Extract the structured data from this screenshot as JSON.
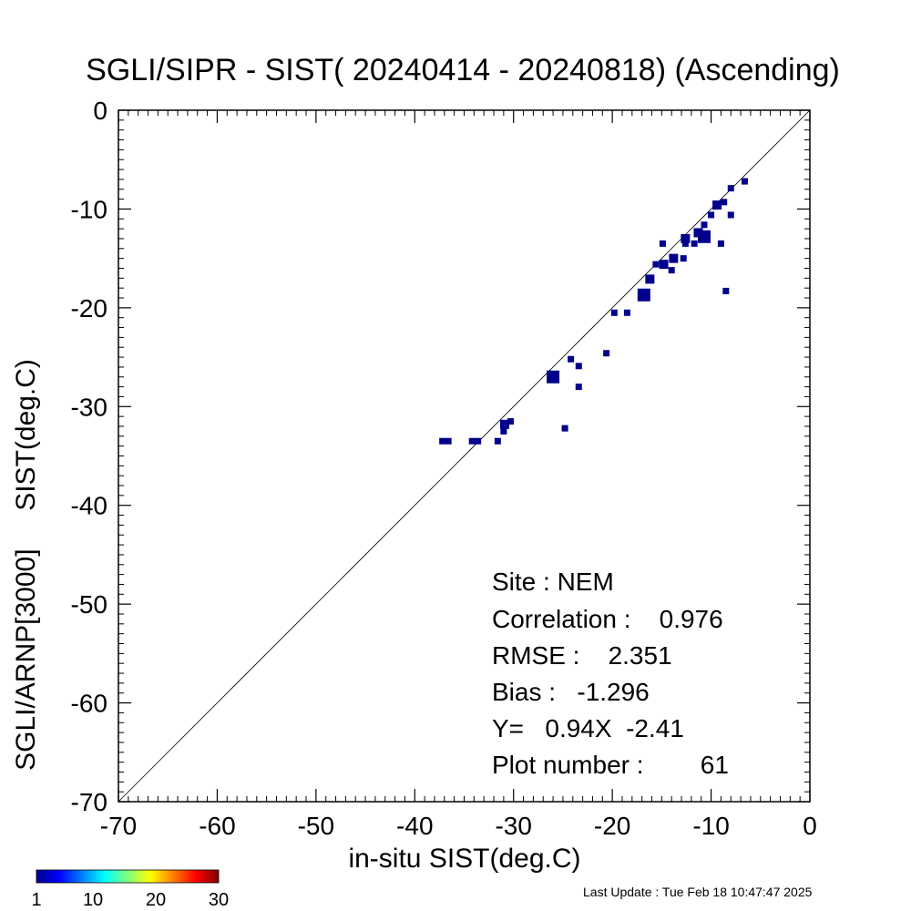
{
  "chart_data": {
    "type": "scatter",
    "title": "SGLI/SIPR - SIST( 20240414 - 20240818) (Ascending)",
    "xlabel": "in-situ SIST(deg.C)",
    "ylabel": "SGLI/ARNP[3000]     SIST(deg.C)",
    "xlim": [
      -70,
      0
    ],
    "ylim": [
      -70,
      0
    ],
    "xticks": [
      -70,
      -60,
      -50,
      -40,
      -30,
      -20,
      -10,
      0
    ],
    "yticks": [
      -70,
      -60,
      -50,
      -40,
      -30,
      -20,
      -10,
      0
    ],
    "xtick_labels": [
      "-70",
      "-60",
      "-50",
      "-40",
      "-30",
      "-20",
      "-10",
      "0"
    ],
    "ytick_labels": [
      "-70",
      "-60",
      "-50",
      "-40",
      "-30",
      "-20",
      "-10",
      "0"
    ],
    "reference_line": "y = x",
    "grid": false,
    "marker_color": "#00008b",
    "points": [
      {
        "x": -37.2,
        "y": -33.5,
        "size": 1
      },
      {
        "x": -36.6,
        "y": -33.5,
        "size": 1
      },
      {
        "x": -34.2,
        "y": -33.5,
        "size": 1
      },
      {
        "x": -33.6,
        "y": -33.5,
        "size": 1
      },
      {
        "x": -31.6,
        "y": -33.5,
        "size": 1
      },
      {
        "x": -31.0,
        "y": -32.5,
        "size": 1
      },
      {
        "x": -30.9,
        "y": -31.8,
        "size": 2
      },
      {
        "x": -30.3,
        "y": -31.5,
        "size": 1
      },
      {
        "x": -26.0,
        "y": -27.0,
        "size": 3
      },
      {
        "x": -24.8,
        "y": -32.2,
        "size": 1
      },
      {
        "x": -24.2,
        "y": -25.2,
        "size": 1
      },
      {
        "x": -23.4,
        "y": -25.9,
        "size": 1
      },
      {
        "x": -23.4,
        "y": -28.0,
        "size": 1
      },
      {
        "x": -20.6,
        "y": -24.6,
        "size": 1
      },
      {
        "x": -19.8,
        "y": -20.5,
        "size": 1
      },
      {
        "x": -18.5,
        "y": -20.5,
        "size": 1
      },
      {
        "x": -16.8,
        "y": -18.7,
        "size": 3
      },
      {
        "x": -16.2,
        "y": -17.1,
        "size": 2
      },
      {
        "x": -15.6,
        "y": -15.6,
        "size": 1
      },
      {
        "x": -14.9,
        "y": -13.5,
        "size": 1
      },
      {
        "x": -14.8,
        "y": -15.6,
        "size": 2
      },
      {
        "x": -14.0,
        "y": -16.2,
        "size": 1
      },
      {
        "x": -13.8,
        "y": -15.0,
        "size": 2
      },
      {
        "x": -12.8,
        "y": -15.0,
        "size": 1
      },
      {
        "x": -12.6,
        "y": -13.0,
        "size": 2
      },
      {
        "x": -12.6,
        "y": -13.5,
        "size": 1
      },
      {
        "x": -11.7,
        "y": -13.5,
        "size": 1
      },
      {
        "x": -11.3,
        "y": -12.4,
        "size": 2
      },
      {
        "x": -10.7,
        "y": -12.8,
        "size": 3
      },
      {
        "x": -10.7,
        "y": -11.6,
        "size": 1
      },
      {
        "x": -10.0,
        "y": -10.6,
        "size": 1
      },
      {
        "x": -9.4,
        "y": -9.6,
        "size": 2
      },
      {
        "x": -9.0,
        "y": -13.5,
        "size": 1
      },
      {
        "x": -8.7,
        "y": -9.3,
        "size": 1
      },
      {
        "x": -8.5,
        "y": -18.3,
        "size": 1
      },
      {
        "x": -8.0,
        "y": -10.6,
        "size": 1
      },
      {
        "x": -8.0,
        "y": -7.9,
        "size": 1
      },
      {
        "x": -6.6,
        "y": -7.2,
        "size": 1
      }
    ],
    "stats": {
      "site": "Site : NEM",
      "correlation": "Correlation :    0.976",
      "rmse": "RMSE :    2.351",
      "bias": "Bias :   -1.296",
      "regression": "Y=   0.94X  -2.41",
      "plot_number": "Plot number :        61"
    },
    "colorbar": {
      "range": [
        1,
        30
      ],
      "labels": [
        "1",
        "10",
        "20",
        "30"
      ],
      "colormap": "jet"
    }
  },
  "footer": {
    "last_update": "Last Update : Tue Feb 18 10:47:47 2025"
  }
}
